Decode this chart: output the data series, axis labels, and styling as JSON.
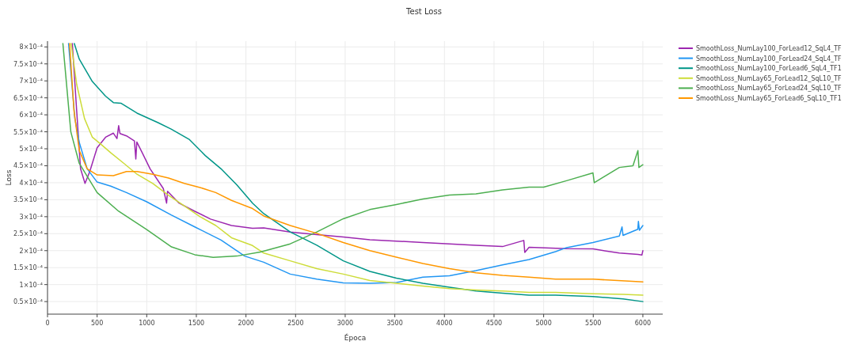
{
  "chart_data": {
    "type": "line",
    "title": "Test Loss",
    "xlabel": "Época",
    "ylabel": "Loss",
    "xlim": [
      0,
      6200
    ],
    "ylim": [
      1.3e-05,
      0.000817
    ],
    "xticks": [
      0,
      500,
      1000,
      1500,
      2000,
      2500,
      3000,
      3500,
      4000,
      4500,
      5000,
      5500,
      6000
    ],
    "yticks": [
      {
        "value": 5e-05,
        "label": "0.5×10⁻⁴"
      },
      {
        "value": 0.0001,
        "label": "1×10⁻⁴"
      },
      {
        "value": 0.00015,
        "label": "1.5×10⁻⁴"
      },
      {
        "value": 0.0002,
        "label": "2×10⁻⁴"
      },
      {
        "value": 0.00025,
        "label": "2.5×10⁻⁴"
      },
      {
        "value": 0.0003,
        "label": "3×10⁻⁴"
      },
      {
        "value": 0.00035,
        "label": "3.5×10⁻⁴"
      },
      {
        "value": 0.0004,
        "label": "4×10⁻⁴"
      },
      {
        "value": 0.00045,
        "label": "4.5×10⁻⁴"
      },
      {
        "value": 0.0005,
        "label": "5×10⁻⁴"
      },
      {
        "value": 0.00055,
        "label": "5.5×10⁻⁴"
      },
      {
        "value": 0.0006,
        "label": "6×10⁻⁴"
      },
      {
        "value": 0.00065,
        "label": "6.5×10⁻⁴"
      },
      {
        "value": 0.0007,
        "label": "7×10⁻⁴"
      },
      {
        "value": 0.00075,
        "label": "7.5×10⁻⁴"
      },
      {
        "value": 0.0008,
        "label": "8×10⁻⁴"
      }
    ],
    "grid": true,
    "legend": "top right",
    "marker": "none",
    "line_style": "solid",
    "series": [
      {
        "name": "SmoothLoss_NumLay100_ForLead12_SqL4_TF",
        "color": "#9c27b0",
        "x": [
          250,
          294,
          333,
          378,
          426,
          500,
          585,
          664,
          700,
          717,
          730,
          796,
          876,
          890,
          900,
          955,
          1034,
          1167,
          1200,
          1210,
          1325,
          1484,
          1643,
          1854,
          2066,
          2179,
          2446,
          2714,
          2981,
          3249,
          3516,
          3783,
          4051,
          4318,
          4586,
          4800,
          4810,
          4853,
          5231,
          5497,
          5763,
          5950,
          5990,
          6000
        ],
        "values": [
          0.00081,
          0.000612,
          0.000441,
          0.000398,
          0.000433,
          0.000503,
          0.000534,
          0.000546,
          0.00053,
          0.000568,
          0.000545,
          0.000538,
          0.000523,
          0.00047,
          0.00052,
          0.000488,
          0.000441,
          0.000383,
          0.00034,
          0.000375,
          0.00034,
          0.000316,
          0.000293,
          0.000274,
          0.000266,
          0.000267,
          0.000255,
          0.000247,
          0.00024,
          0.000232,
          0.000228,
          0.000224,
          0.00022,
          0.000216,
          0.000212,
          0.00023,
          0.000195,
          0.00021,
          0.000206,
          0.000205,
          0.000193,
          0.000189,
          0.000187,
          0.0002
        ]
      },
      {
        "name": "SmoothLoss_NumLay100_ForLead24_SqL4_TF",
        "color": "#2196f3",
        "x": [
          212,
          275,
          320,
          400,
          500,
          638,
          796,
          1000,
          1246,
          1484,
          1749,
          1987,
          2179,
          2446,
          2714,
          2981,
          3249,
          3516,
          3783,
          4051,
          4318,
          4586,
          4853,
          5120,
          5231,
          5497,
          5763,
          5790,
          5800,
          5949,
          5955,
          5965,
          6000
        ],
        "values": [
          0.00081,
          0.00059,
          0.000519,
          0.000441,
          0.000402,
          0.00039,
          0.000371,
          0.000344,
          0.000305,
          0.00027,
          0.000231,
          0.000184,
          0.000166,
          0.000131,
          0.000116,
          0.000105,
          0.000104,
          0.000106,
          0.000122,
          0.000126,
          0.000141,
          0.000158,
          0.000174,
          0.000197,
          0.000209,
          0.000224,
          0.000243,
          0.00027,
          0.000245,
          0.000263,
          0.000286,
          0.00026,
          0.000274
        ]
      },
      {
        "name": "SmoothLoss_NumLay100_ForLead6_SqL4_TF1",
        "color": "#009688",
        "x": [
          270,
          320,
          452,
          585,
          664,
          743,
          902,
          1114,
          1246,
          1431,
          1590,
          1749,
          1907,
          2066,
          2179,
          2446,
          2714,
          2981,
          3249,
          3516,
          3783,
          4051,
          4318,
          4586,
          4853,
          5120,
          5497,
          5800,
          6000
        ],
        "values": [
          0.00081,
          0.000764,
          0.000698,
          0.000655,
          0.000636,
          0.000634,
          0.000605,
          0.000577,
          0.000558,
          0.000527,
          0.00048,
          0.000441,
          0.000394,
          0.00034,
          0.000309,
          0.000255,
          0.000216,
          0.00017,
          0.000139,
          0.000119,
          0.000104,
          9.2e-05,
          8.1e-05,
          7.5e-05,
          6.9e-05,
          6.9e-05,
          6.5e-05,
          5.8e-05,
          5e-05
        ]
      },
      {
        "name": "SmoothLoss_NumLay65_ForLead12_SqL10_TF",
        "color": "#cddc39",
        "x": [
          238,
          294,
          373,
          452,
          532,
          638,
          770,
          902,
          1061,
          1220,
          1378,
          1537,
          1696,
          1854,
          2066,
          2179,
          2446,
          2714,
          2981,
          3249,
          3516,
          3783,
          4051,
          4318,
          4586,
          4853,
          5120,
          5497,
          5800,
          6000
        ],
        "values": [
          0.00081,
          0.00069,
          0.000589,
          0.000534,
          0.000515,
          0.000488,
          0.000457,
          0.000425,
          0.000398,
          0.000363,
          0.000332,
          0.0003,
          0.000274,
          0.000238,
          0.000215,
          0.000193,
          0.00017,
          0.000147,
          0.000131,
          0.000112,
          0.000104,
          9.6e-05,
          8.8e-05,
          8.4e-05,
          8.1e-05,
          7.7e-05,
          7.7e-05,
          7.3e-05,
          7.1e-05,
          6.9e-05
        ]
      },
      {
        "name": "SmoothLoss_NumLay65_ForLead24_SqL10_TF",
        "color": "#4caf50",
        "x": [
          155,
          235,
          320,
          500,
          717,
          1000,
          1250,
          1484,
          1669,
          1907,
          2145,
          2446,
          2714,
          2981,
          3249,
          3516,
          3783,
          4051,
          4318,
          4586,
          4853,
          5000,
          5231,
          5497,
          5510,
          5763,
          5900,
          5950,
          5960,
          6000
        ],
        "values": [
          0.00081,
          0.00055,
          0.000457,
          0.000371,
          0.000316,
          0.000262,
          0.000211,
          0.000188,
          0.00018,
          0.000184,
          0.000196,
          0.00022,
          0.000255,
          0.000294,
          0.000321,
          0.000336,
          0.000352,
          0.000364,
          0.000367,
          0.000379,
          0.000387,
          0.000387,
          0.000406,
          0.000429,
          0.0004,
          0.000445,
          0.00045,
          0.000495,
          0.000445,
          0.000453
        ]
      },
      {
        "name": "SmoothLoss_NumLay65_ForLead6_SqL10_TF1",
        "color": "#ff9800",
        "x": [
          222,
          267,
          320,
          400,
          500,
          664,
          796,
          902,
          1061,
          1220,
          1378,
          1537,
          1696,
          1854,
          2066,
          2179,
          2446,
          2714,
          2981,
          3249,
          3516,
          3783,
          4051,
          4318,
          4586,
          4853,
          5120,
          5497,
          6000
        ],
        "values": [
          0.00081,
          0.000612,
          0.000495,
          0.000441,
          0.000423,
          0.000421,
          0.000433,
          0.000433,
          0.000425,
          0.000414,
          0.000398,
          0.000386,
          0.000371,
          0.000348,
          0.000324,
          0.000302,
          0.000274,
          0.000251,
          0.000224,
          0.0002,
          0.000181,
          0.000162,
          0.000147,
          0.000135,
          0.000127,
          0.000122,
          0.000116,
          0.000116,
          0.000108
        ]
      }
    ]
  }
}
